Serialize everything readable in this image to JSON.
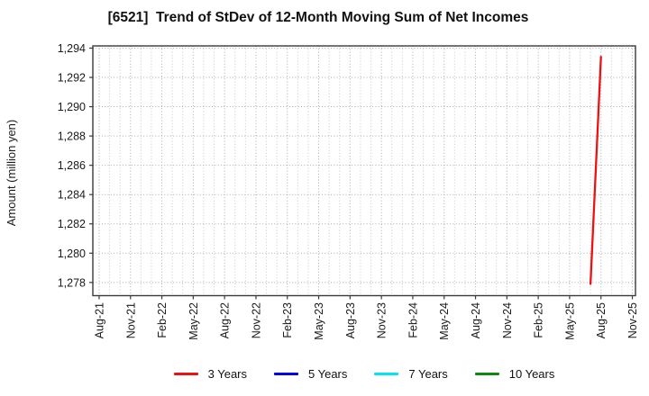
{
  "chart_data": {
    "type": "line",
    "title": "[6521]  Trend of StDev of 12-Month Moving Sum of Net Incomes",
    "xlabel": "",
    "ylabel": "Amount (million yen)",
    "grid": true,
    "legend_position": "bottom",
    "y_ticks": [
      1278,
      1280,
      1282,
      1284,
      1286,
      1288,
      1290,
      1292,
      1294
    ],
    "ylim": [
      1277.1,
      1294.15
    ],
    "xlim_months": [
      -0.6,
      51.3
    ],
    "months_total": 52,
    "x_tick_month_indices": [
      0,
      3,
      6,
      9,
      12,
      15,
      18,
      21,
      24,
      27,
      30,
      33,
      36,
      39,
      42,
      45,
      48,
      51
    ],
    "x_tick_labels": [
      "Aug-21",
      "Nov-21",
      "Feb-22",
      "May-22",
      "Aug-22",
      "Nov-22",
      "Feb-23",
      "May-23",
      "Aug-23",
      "Nov-23",
      "Feb-24",
      "May-24",
      "Aug-24",
      "Nov-24",
      "Feb-25",
      "May-25",
      "Aug-25",
      "Nov-25"
    ],
    "series": [
      {
        "name": "3 Years",
        "color": "#ee1111",
        "points": [
          {
            "month": "Jul-25",
            "x": 47,
            "y": 1277.9
          },
          {
            "month": "Aug-25",
            "x": 48,
            "y": 1293.4
          }
        ]
      },
      {
        "name": "5 Years",
        "color": "#0000ee",
        "points": []
      },
      {
        "name": "7 Years",
        "color": "#00e5ee",
        "points": []
      },
      {
        "name": "10 Years",
        "color": "#0b8a0b",
        "points": []
      }
    ]
  },
  "style_colors": {
    "axis_border": "#3a3a3a",
    "grid_major": "#aaaaaa",
    "grid_minor": "#c8c8c8",
    "tick_text": "#1a1a1a"
  }
}
